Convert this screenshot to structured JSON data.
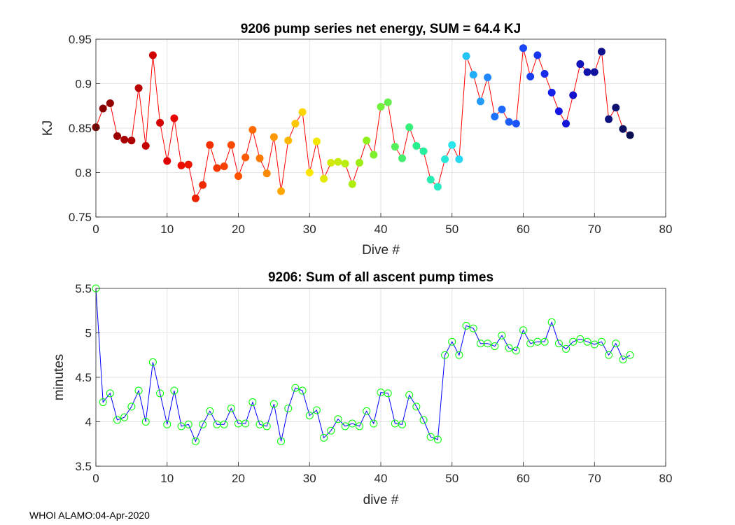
{
  "footer": "WHOI ALAMO:04-Apr-2020",
  "chart_data": [
    {
      "type": "scatter",
      "title": "9206 pump series net energy, SUM =  64.4 KJ",
      "xlabel": "Dive #",
      "ylabel": "KJ",
      "xlim": [
        0,
        80
      ],
      "ylim": [
        0.75,
        0.95
      ],
      "xticks": [
        "0",
        "10",
        "20",
        "30",
        "40",
        "50",
        "60",
        "70",
        "80"
      ],
      "yticks": [
        "0.75",
        "0.8",
        "0.85",
        "0.9",
        "0.95"
      ],
      "grid": true,
      "line_color": "#ff0000",
      "marker": "filled-circle, colored by dive index (dark red → red → orange → yellow → green → cyan → blue → dark navy)",
      "x": [
        0,
        1,
        2,
        3,
        4,
        5,
        6,
        7,
        8,
        9,
        10,
        11,
        12,
        13,
        14,
        15,
        16,
        17,
        18,
        19,
        20,
        21,
        22,
        23,
        24,
        25,
        26,
        27,
        28,
        29,
        30,
        31,
        32,
        33,
        34,
        35,
        36,
        37,
        38,
        39,
        40,
        41,
        42,
        43,
        44,
        45,
        46,
        47,
        48,
        49,
        50,
        51,
        52,
        53,
        54,
        55,
        56,
        57,
        58,
        59,
        60,
        61,
        62,
        63,
        64,
        65,
        66,
        67,
        68,
        69,
        70,
        71,
        72,
        73,
        74,
        75
      ],
      "y": [
        0.851,
        0.872,
        0.878,
        0.841,
        0.837,
        0.836,
        0.895,
        0.83,
        0.932,
        0.856,
        0.813,
        0.861,
        0.808,
        0.809,
        0.771,
        0.786,
        0.831,
        0.805,
        0.807,
        0.831,
        0.796,
        0.817,
        0.848,
        0.816,
        0.799,
        0.84,
        0.779,
        0.836,
        0.855,
        0.868,
        0.8,
        0.835,
        0.793,
        0.811,
        0.812,
        0.81,
        0.787,
        0.811,
        0.836,
        0.82,
        0.874,
        0.879,
        0.829,
        0.816,
        0.851,
        0.83,
        0.824,
        0.792,
        0.784,
        0.815,
        0.831,
        0.815,
        0.931,
        0.91,
        0.88,
        0.907,
        0.863,
        0.871,
        0.857,
        0.855,
        0.94,
        0.908,
        0.932,
        0.911,
        0.89,
        0.869,
        0.855,
        0.887,
        0.922,
        0.913,
        0.913,
        0.936,
        0.86,
        0.873,
        0.849,
        0.842
      ]
    },
    {
      "type": "line",
      "title": "9206: Sum of all ascent pump times",
      "xlabel": "dive #",
      "ylabel": "minutes",
      "xlim": [
        0,
        80
      ],
      "ylim": [
        3.5,
        5.5
      ],
      "xticks": [
        "0",
        "10",
        "20",
        "30",
        "40",
        "50",
        "60",
        "70",
        "80"
      ],
      "yticks": [
        "3.5",
        "4",
        "4.5",
        "5",
        "5.5"
      ],
      "grid": true,
      "line_color": "#0000ff",
      "marker_color": "#00ff00",
      "marker": "open-circle",
      "x": [
        0,
        1,
        2,
        3,
        4,
        5,
        6,
        7,
        8,
        9,
        10,
        11,
        12,
        13,
        14,
        15,
        16,
        17,
        18,
        19,
        20,
        21,
        22,
        23,
        24,
        25,
        26,
        27,
        28,
        29,
        30,
        31,
        32,
        33,
        34,
        35,
        36,
        37,
        38,
        39,
        40,
        41,
        42,
        43,
        44,
        45,
        46,
        47,
        48,
        49,
        50,
        51,
        52,
        53,
        54,
        55,
        56,
        57,
        58,
        59,
        60,
        61,
        62,
        63,
        64,
        65,
        66,
        67,
        68,
        69,
        70,
        71,
        72,
        73,
        74,
        75
      ],
      "y": [
        5.5,
        4.22,
        4.32,
        4.02,
        4.05,
        4.17,
        4.35,
        4.0,
        4.67,
        4.32,
        3.97,
        4.35,
        3.95,
        3.97,
        3.78,
        3.97,
        4.12,
        3.97,
        3.97,
        4.15,
        3.98,
        3.98,
        4.22,
        3.97,
        3.95,
        4.2,
        3.78,
        4.15,
        4.38,
        4.35,
        4.07,
        4.13,
        3.82,
        3.9,
        4.03,
        3.95,
        3.98,
        3.95,
        4.12,
        3.98,
        4.33,
        4.32,
        3.98,
        3.97,
        4.3,
        4.17,
        4.02,
        3.83,
        3.8,
        4.75,
        4.9,
        4.75,
        5.08,
        5.05,
        4.88,
        4.88,
        4.85,
        4.97,
        4.83,
        4.8,
        5.03,
        4.88,
        4.9,
        4.9,
        5.12,
        4.88,
        4.82,
        4.9,
        4.93,
        4.9,
        4.87,
        4.9,
        4.75,
        4.88,
        4.7,
        4.75
      ]
    }
  ]
}
